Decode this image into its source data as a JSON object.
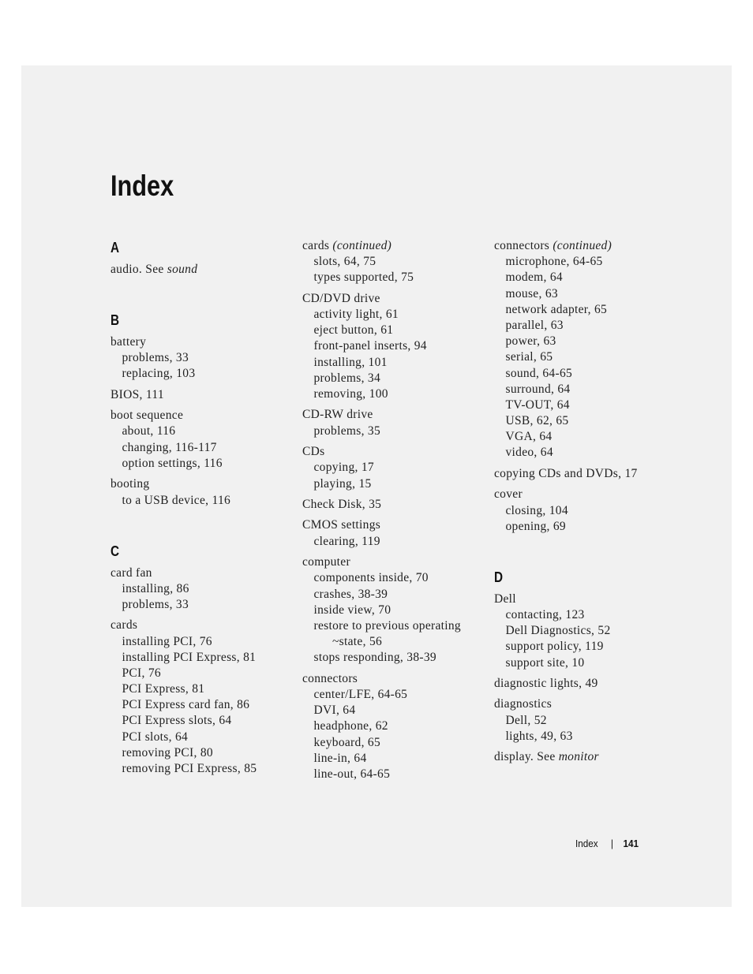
{
  "page_title": "Index",
  "footer": {
    "section": "Index",
    "separator": "|",
    "page_number": "141"
  },
  "columns": [
    [
      {
        "heading": "A",
        "groups": [
          {
            "main": {
              "text": "audio. See ",
              "italic": "sound"
            },
            "subs": []
          }
        ]
      },
      {
        "heading": "B",
        "groups": [
          {
            "main": {
              "text": "battery"
            },
            "subs": [
              "problems, 33",
              "replacing, 103"
            ]
          },
          {
            "main": {
              "text": "BIOS, 111"
            },
            "subs": []
          },
          {
            "main": {
              "text": "boot sequence"
            },
            "subs": [
              "about, 116",
              "changing, 116-117",
              "option settings, 116"
            ]
          },
          {
            "main": {
              "text": "booting"
            },
            "subs": [
              "to a USB device, 116"
            ]
          }
        ]
      },
      {
        "heading": "C",
        "groups": [
          {
            "main": {
              "text": "card fan"
            },
            "subs": [
              "installing, 86",
              "problems, 33"
            ]
          },
          {
            "main": {
              "text": "cards"
            },
            "subs": [
              "installing PCI, 76",
              "installing PCI Express, 81",
              "PCI, 76",
              "PCI Express, 81",
              "PCI Express card fan, 86",
              "PCI Express slots, 64",
              "PCI slots, 64",
              "removing PCI, 80",
              "removing PCI Express, 85"
            ]
          }
        ]
      }
    ],
    [
      {
        "heading": "",
        "groups": [
          {
            "main": {
              "text": "cards ",
              "italic": "(continued)"
            },
            "subs": [
              "slots, 64, 75",
              "types supported, 75"
            ]
          },
          {
            "main": {
              "text": "CD/DVD drive"
            },
            "subs": [
              "activity light, 61",
              "eject button, 61",
              "front-panel inserts, 94",
              "installing, 101",
              "problems, 34",
              "removing, 100"
            ]
          },
          {
            "main": {
              "text": "CD-RW drive"
            },
            "subs": [
              "problems, 35"
            ]
          },
          {
            "main": {
              "text": "CDs"
            },
            "subs": [
              "copying, 17",
              "playing, 15"
            ]
          },
          {
            "main": {
              "text": "Check Disk, 35"
            },
            "subs": []
          },
          {
            "main": {
              "text": "CMOS settings"
            },
            "subs": [
              "clearing, 119"
            ]
          },
          {
            "main": {
              "text": "computer"
            },
            "subs": [
              "components inside, 70",
              "crashes, 38-39",
              "inside view, 70",
              "restore to previous operating",
              "~state, 56",
              "stops responding, 38-39"
            ]
          },
          {
            "main": {
              "text": "connectors"
            },
            "subs": [
              "center/LFE, 64-65",
              "DVI, 64",
              "headphone, 62",
              "keyboard, 65",
              "line-in, 64",
              "line-out, 64-65"
            ]
          }
        ]
      }
    ],
    [
      {
        "heading": "",
        "groups": [
          {
            "main": {
              "text": "connectors ",
              "italic": "(continued)"
            },
            "subs": [
              "microphone, 64-65",
              "modem, 64",
              "mouse, 63",
              "network adapter, 65",
              "parallel, 63",
              "power, 63",
              "serial, 65",
              "sound, 64-65",
              "surround, 64",
              "TV-OUT, 64",
              "USB, 62, 65",
              "VGA, 64",
              "video, 64"
            ]
          },
          {
            "main": {
              "text": "copying CDs and DVDs, 17"
            },
            "subs": []
          },
          {
            "main": {
              "text": "cover"
            },
            "subs": [
              "closing, 104",
              "opening, 69"
            ]
          }
        ]
      },
      {
        "heading": "D",
        "groups": [
          {
            "main": {
              "text": "Dell"
            },
            "subs": [
              "contacting, 123",
              "Dell Diagnostics, 52",
              "support policy, 119",
              "support site, 10"
            ]
          },
          {
            "main": {
              "text": "diagnostic lights, 49"
            },
            "subs": []
          },
          {
            "main": {
              "text": "diagnostics"
            },
            "subs": [
              "Dell, 52",
              "lights, 49, 63"
            ]
          },
          {
            "main": {
              "text": "display. See ",
              "italic": "monitor"
            },
            "subs": []
          }
        ]
      }
    ]
  ]
}
